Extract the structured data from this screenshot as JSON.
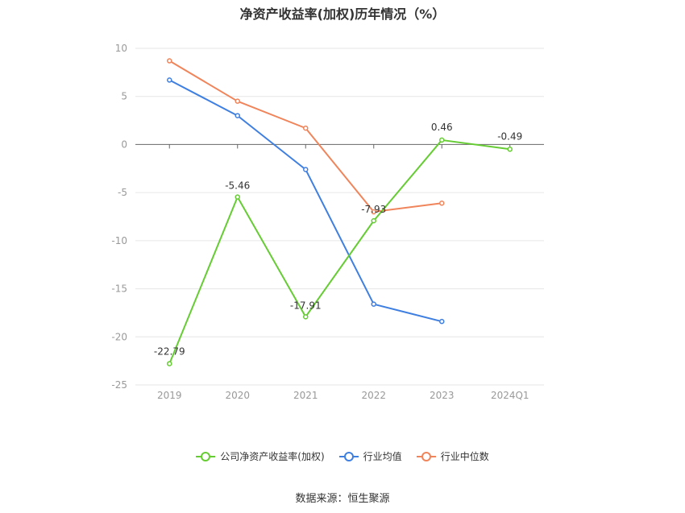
{
  "chart_data": {
    "type": "line",
    "title": "净资产收益率(加权)历年情况（%）",
    "categories": [
      "2019",
      "2020",
      "2021",
      "2022",
      "2023",
      "2024Q1"
    ],
    "ylim": [
      -25,
      10
    ],
    "yticks": [
      10,
      5,
      0,
      -5,
      -10,
      -15,
      -20,
      -25
    ],
    "series": [
      {
        "name": "公司净资产收益率(加权)",
        "color": "#66cc33",
        "values": [
          -22.79,
          -5.46,
          -17.91,
          -7.93,
          0.46,
          -0.49
        ],
        "labels": [
          "-22.79",
          "-5.46",
          "-17.91",
          "-7.93",
          "0.46",
          "-0.49"
        ]
      },
      {
        "name": "行业均值",
        "color": "#3f7fe0",
        "values": [
          6.7,
          3.0,
          -2.6,
          -16.6,
          -18.4,
          null
        ]
      },
      {
        "name": "行业中位数",
        "color": "#f0845a",
        "values": [
          8.7,
          4.5,
          1.7,
          -7.0,
          -6.1,
          null
        ]
      }
    ],
    "grid": true,
    "legend": "bottom"
  },
  "source": "数据来源：恒生聚源"
}
